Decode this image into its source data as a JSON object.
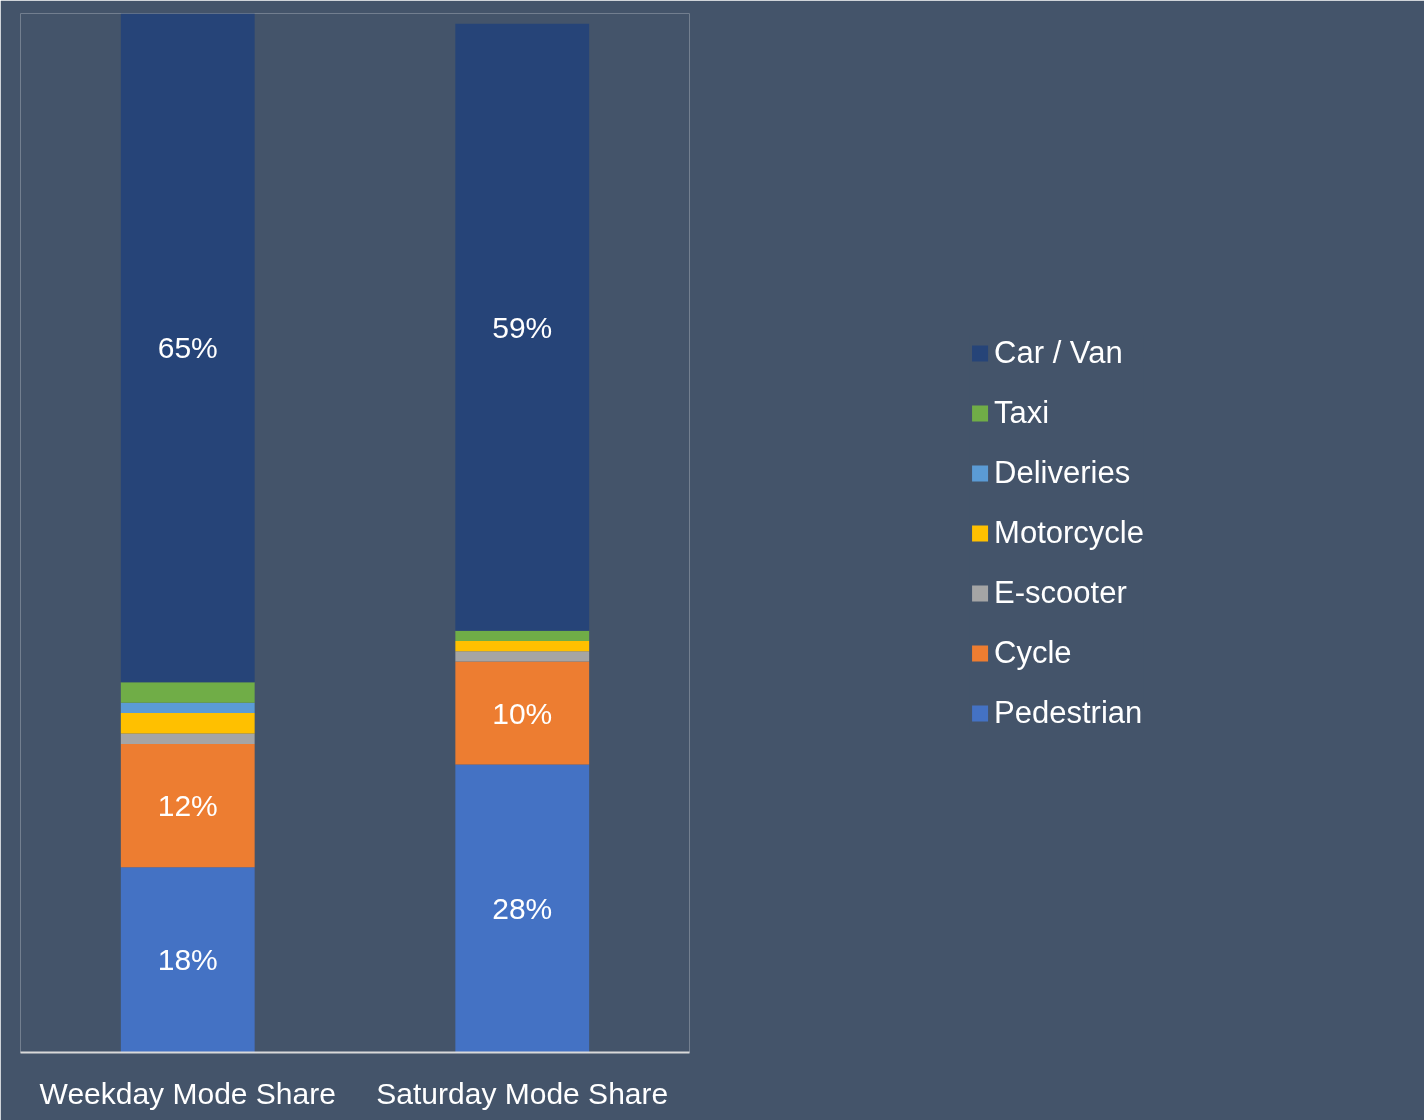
{
  "chart_data": {
    "type": "bar",
    "stacked": true,
    "categories": [
      "Weekday Mode Share",
      "Saturday Mode Share"
    ],
    "series": [
      {
        "name": "Pedestrian",
        "color": "#4472c4",
        "values": [
          18,
          28
        ],
        "value_labels": [
          "18%",
          "28%"
        ]
      },
      {
        "name": "Cycle",
        "color": "#ed7d31",
        "values": [
          12,
          10
        ],
        "value_labels": [
          "12%",
          "10%"
        ]
      },
      {
        "name": "E-scooter",
        "color": "#a5a5a5",
        "values": [
          1,
          1
        ],
        "value_labels": [
          null,
          null
        ]
      },
      {
        "name": "Motorcycle",
        "color": "#ffc000",
        "values": [
          2,
          1
        ],
        "value_labels": [
          null,
          null
        ]
      },
      {
        "name": "Deliveries",
        "color": "#5b9bd5",
        "values": [
          1,
          0
        ],
        "value_labels": [
          null,
          null
        ]
      },
      {
        "name": "Taxi",
        "color": "#70ad47",
        "values": [
          2,
          1
        ],
        "value_labels": [
          null,
          null
        ]
      },
      {
        "name": "Car / Van",
        "color": "#264478",
        "values": [
          65,
          59
        ],
        "value_labels": [
          "65%",
          "59%"
        ]
      }
    ],
    "legend": "right",
    "grid": false
  }
}
